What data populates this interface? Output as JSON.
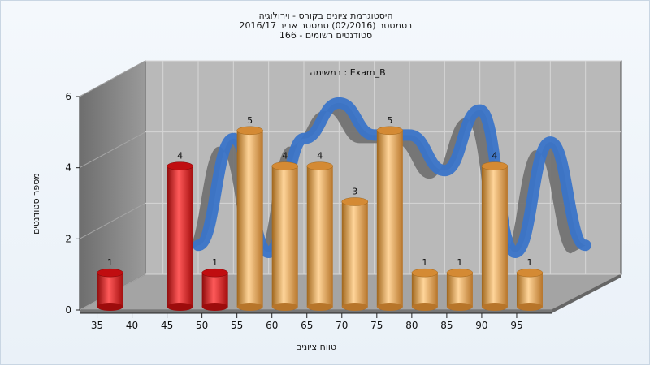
{
  "chart_data": {
    "type": "bar",
    "title_lines": [
      "היסטוגרמת ציונים בקורס - וירולוגיה",
      "בסמסטר  (02/2016)  סמסטר אביב 2016/17",
      "סטודנטים רשומים - 166"
    ],
    "inner_label": "במשימה : Exam_B",
    "xlabel": "טווח ציונים",
    "ylabel": "מספר סטודנטים",
    "x_ticks": [
      35,
      40,
      45,
      50,
      55,
      60,
      65,
      70,
      75,
      80,
      85,
      90,
      95
    ],
    "y_ticks": [
      0,
      2,
      4,
      6
    ],
    "ylim": [
      0,
      6
    ],
    "series": [
      {
        "values": [
          {
            "x": 35,
            "y": 1,
            "color": "red"
          },
          {
            "x": 45,
            "y": 4,
            "color": "red"
          },
          {
            "x": 50,
            "y": 1,
            "color": "red"
          },
          {
            "x": 55,
            "y": 5,
            "color": "orange"
          },
          {
            "x": 60,
            "y": 4,
            "color": "orange"
          },
          {
            "x": 65,
            "y": 4,
            "color": "orange"
          },
          {
            "x": 70,
            "y": 3,
            "color": "orange"
          },
          {
            "x": 75,
            "y": 5,
            "color": "orange"
          },
          {
            "x": 80,
            "y": 1,
            "color": "orange"
          },
          {
            "x": 85,
            "y": 1,
            "color": "orange"
          },
          {
            "x": 90,
            "y": 4,
            "color": "orange"
          },
          {
            "x": 95,
            "y": 1,
            "color": "orange"
          }
        ]
      }
    ],
    "trend": [
      {
        "x": 40,
        "y": 1.5
      },
      {
        "x": 45,
        "y": 4.5
      },
      {
        "x": 50,
        "y": 1.3
      },
      {
        "x": 55,
        "y": 4.5
      },
      {
        "x": 60,
        "y": 5.5
      },
      {
        "x": 65,
        "y": 4.6
      },
      {
        "x": 70,
        "y": 4.6
      },
      {
        "x": 75,
        "y": 3.6
      },
      {
        "x": 80,
        "y": 5.3
      },
      {
        "x": 85,
        "y": 1.3
      },
      {
        "x": 90,
        "y": 4.4
      },
      {
        "x": 95,
        "y": 1.5
      }
    ],
    "colors": {
      "red": "#e3181c",
      "orange": "#e9a84c",
      "trend": "#3a74c8",
      "back_wall": "#b9b9b9",
      "side_wall": "#8f8f8f",
      "floor": "#a4a4a4"
    },
    "grid": true
  }
}
